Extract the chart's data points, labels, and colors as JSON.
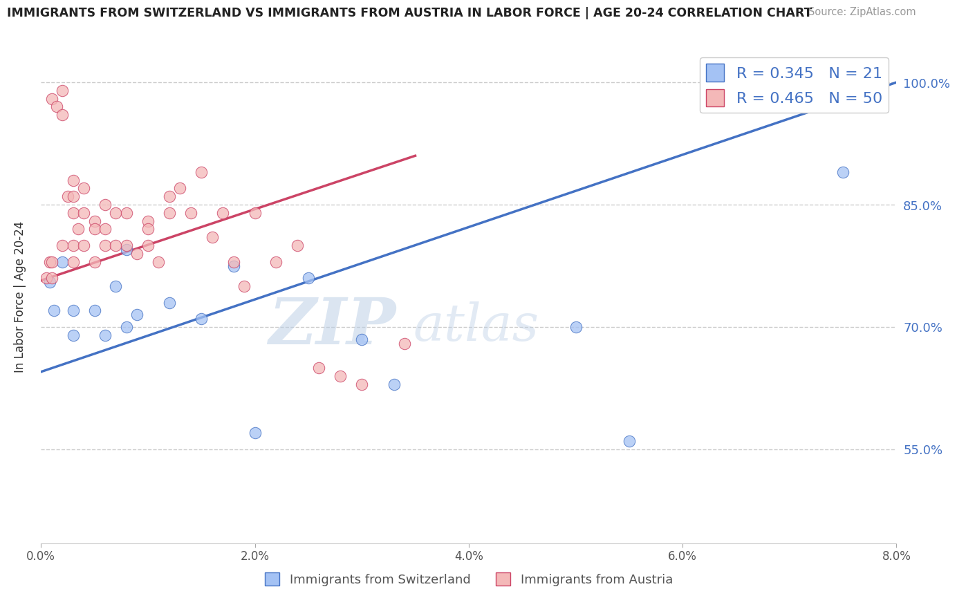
{
  "title": "IMMIGRANTS FROM SWITZERLAND VS IMMIGRANTS FROM AUSTRIA IN LABOR FORCE | AGE 20-24 CORRELATION CHART",
  "source": "Source: ZipAtlas.com",
  "ylabel": "In Labor Force | Age 20-24",
  "legend_label_blue": "Immigrants from Switzerland",
  "legend_label_pink": "Immigrants from Austria",
  "R_blue": 0.345,
  "N_blue": 21,
  "R_pink": 0.465,
  "N_pink": 50,
  "xmin": 0.0,
  "xmax": 0.08,
  "ymin": 0.435,
  "ymax": 1.04,
  "yticks": [
    0.55,
    0.7,
    0.85,
    1.0
  ],
  "ytick_labels": [
    "55.0%",
    "70.0%",
    "85.0%",
    "100.0%"
  ],
  "xticks": [
    0.0,
    0.02,
    0.04,
    0.06,
    0.08
  ],
  "xtick_labels": [
    "0.0%",
    "2.0%",
    "4.0%",
    "6.0%",
    "8.0%"
  ],
  "color_blue": "#a4c2f4",
  "color_pink": "#f4b8b8",
  "color_line_blue": "#4472c4",
  "color_line_pink": "#cc4466",
  "background_color": "#ffffff",
  "grid_color": "#cccccc",
  "blue_line_x0": 0.0,
  "blue_line_y0": 0.645,
  "blue_line_x1": 0.08,
  "blue_line_y1": 1.0,
  "pink_line_x0": 0.0,
  "pink_line_y0": 0.757,
  "pink_line_x1": 0.035,
  "pink_line_y1": 0.91,
  "switzerland_x": [
    0.0008,
    0.0012,
    0.002,
    0.003,
    0.003,
    0.005,
    0.006,
    0.007,
    0.008,
    0.008,
    0.009,
    0.012,
    0.015,
    0.018,
    0.02,
    0.025,
    0.03,
    0.033,
    0.05,
    0.055,
    0.075
  ],
  "switzerland_y": [
    0.755,
    0.72,
    0.78,
    0.69,
    0.72,
    0.72,
    0.69,
    0.75,
    0.795,
    0.7,
    0.715,
    0.73,
    0.71,
    0.775,
    0.57,
    0.76,
    0.685,
    0.63,
    0.7,
    0.56,
    0.89
  ],
  "austria_x": [
    0.0005,
    0.0008,
    0.001,
    0.001,
    0.001,
    0.0015,
    0.002,
    0.002,
    0.002,
    0.0025,
    0.003,
    0.003,
    0.003,
    0.003,
    0.003,
    0.0035,
    0.004,
    0.004,
    0.004,
    0.005,
    0.005,
    0.005,
    0.006,
    0.006,
    0.006,
    0.007,
    0.007,
    0.008,
    0.008,
    0.009,
    0.01,
    0.01,
    0.01,
    0.011,
    0.012,
    0.012,
    0.013,
    0.014,
    0.015,
    0.016,
    0.017,
    0.018,
    0.019,
    0.02,
    0.022,
    0.024,
    0.026,
    0.028,
    0.03,
    0.034
  ],
  "austria_y": [
    0.76,
    0.78,
    0.76,
    0.78,
    0.98,
    0.97,
    0.99,
    0.96,
    0.8,
    0.86,
    0.88,
    0.86,
    0.84,
    0.8,
    0.78,
    0.82,
    0.87,
    0.84,
    0.8,
    0.83,
    0.82,
    0.78,
    0.85,
    0.82,
    0.8,
    0.84,
    0.8,
    0.84,
    0.8,
    0.79,
    0.83,
    0.82,
    0.8,
    0.78,
    0.84,
    0.86,
    0.87,
    0.84,
    0.89,
    0.81,
    0.84,
    0.78,
    0.75,
    0.84,
    0.78,
    0.8,
    0.65,
    0.64,
    0.63,
    0.68
  ]
}
